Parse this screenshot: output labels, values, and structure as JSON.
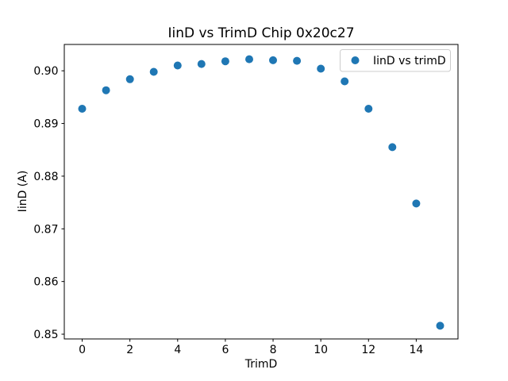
{
  "chart_data": {
    "type": "scatter",
    "title": "IinD vs TrimD Chip 0x20c27",
    "xlabel": "TrimD",
    "ylabel": "IinD (A)",
    "legend": [
      "IinD vs trimD"
    ],
    "legend_position": "upper right",
    "marker_color": "#1f77b4",
    "grid": false,
    "x": [
      0,
      1,
      2,
      3,
      4,
      5,
      6,
      7,
      8,
      9,
      10,
      11,
      12,
      13,
      14,
      15
    ],
    "y": [
      0.8928,
      0.8963,
      0.8984,
      0.8998,
      0.901,
      0.9013,
      0.9018,
      0.9022,
      0.902,
      0.9019,
      0.9004,
      0.898,
      0.8928,
      0.8855,
      0.8748,
      0.8516
    ],
    "xlim": [
      -0.75,
      15.75
    ],
    "ylim": [
      0.8491,
      0.905
    ],
    "xticks": [
      0,
      2,
      4,
      6,
      8,
      10,
      12,
      14
    ],
    "xtick_labels": [
      "0",
      "2",
      "4",
      "6",
      "8",
      "10",
      "12",
      "14"
    ],
    "yticks": [
      0.85,
      0.86,
      0.87,
      0.88,
      0.89,
      0.9
    ],
    "ytick_labels": [
      "0.85",
      "0.86",
      "0.87",
      "0.88",
      "0.89",
      "0.90"
    ]
  }
}
